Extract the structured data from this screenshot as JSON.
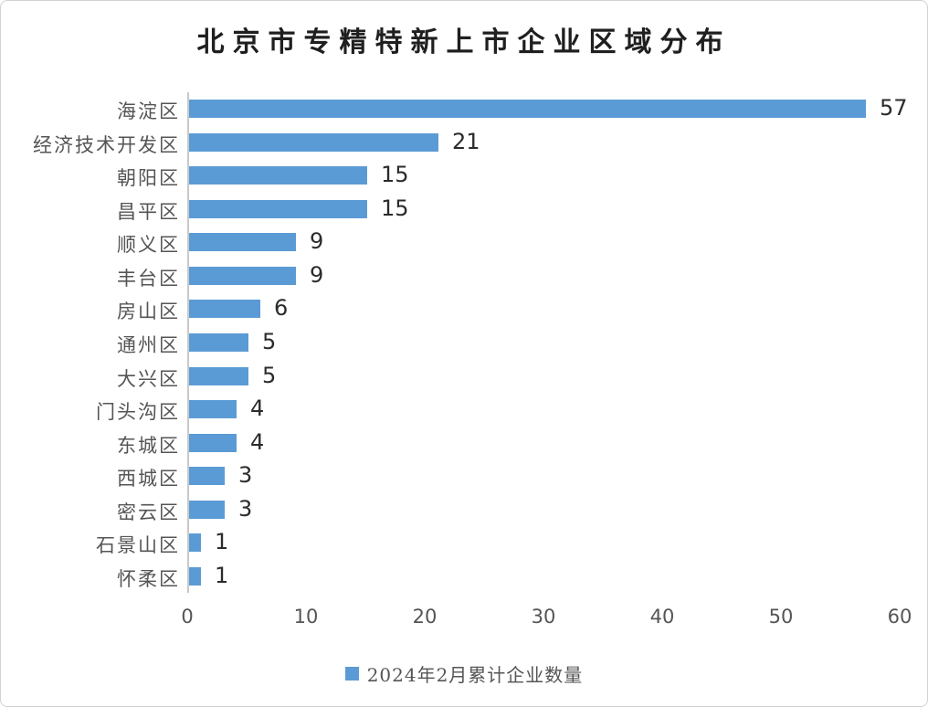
{
  "chart_data": {
    "type": "bar",
    "orientation": "horizontal",
    "title": "北京市专精特新上市企业区域分布",
    "series": [
      {
        "name": "2024年2月累计企业数量",
        "values": [
          57,
          21,
          15,
          15,
          9,
          9,
          6,
          5,
          5,
          4,
          4,
          3,
          3,
          1,
          1
        ]
      }
    ],
    "categories": [
      "海淀区",
      "经济技术开发区",
      "朝阳区",
      "昌平区",
      "顺义区",
      "丰台区",
      "房山区",
      "通州区",
      "大兴区",
      "门头沟区",
      "东城区",
      "西城区",
      "密云区",
      "石景山区",
      "怀柔区"
    ],
    "data_labels_shown": true,
    "xlabel": "",
    "ylabel": "",
    "xlim": [
      0,
      60
    ],
    "x_ticks": [
      0,
      10,
      20,
      30,
      40,
      50,
      60
    ],
    "gridlines": false,
    "legend_position": "bottom"
  },
  "legend": {
    "label": "2024年2月累计企业数量"
  },
  "colors": {
    "bar": "#5b9bd5",
    "title_text": "#1f1f1f",
    "data_label_text": "#2b2b2b",
    "axis_label_text": "#555555",
    "axis_line": "#c9c9c9",
    "background": "#ffffff",
    "border": "#d2d2d2"
  }
}
